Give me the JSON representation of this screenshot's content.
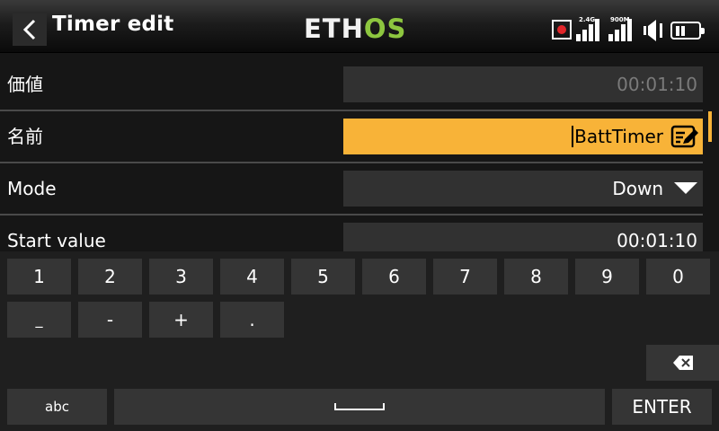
{
  "header": {
    "title": "Timer edit",
    "logo_part1": "ETH",
    "logo_part2": "OS",
    "logo_color_white": "#f2f2f2",
    "logo_color_green": "#8dc63f",
    "status": {
      "rec_icon": "record-icon",
      "signal1_label": "2.4G",
      "signal2_label": "900M",
      "speaker_icon": "speaker-icon",
      "battery_icon": "battery-icon"
    }
  },
  "form": {
    "value": {
      "label": "価値",
      "value": "00:01:10"
    },
    "name": {
      "label": "名前",
      "value": "BattTimer"
    },
    "mode": {
      "label": "Mode",
      "value": "Down"
    },
    "start": {
      "label": "Start value",
      "value": "00:01:10"
    }
  },
  "keyboard": {
    "row1": [
      "1",
      "2",
      "3",
      "4",
      "5",
      "6",
      "7",
      "8",
      "9",
      "0"
    ],
    "row2": [
      "_",
      "-",
      "+",
      "."
    ],
    "abc": "abc",
    "enter": "ENTER",
    "space_icon": "space-icon",
    "backspace_icon": "backspace-icon"
  },
  "colors": {
    "accent": "#f8b338",
    "field_bg": "#313131",
    "record_red": "#e2262a"
  }
}
